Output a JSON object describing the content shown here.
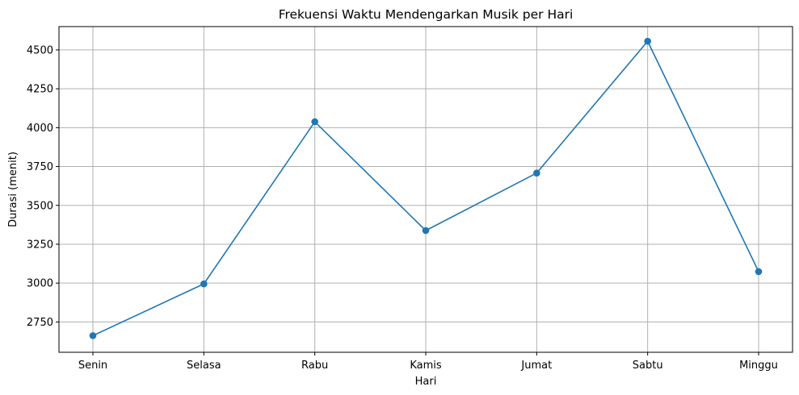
{
  "chart_data": {
    "type": "line",
    "title": "Frekuensi Waktu Mendengarkan Musik per Hari",
    "xlabel": "Hari",
    "ylabel": "Durasi (menit)",
    "categories": [
      "Senin",
      "Selasa",
      "Rabu",
      "Kamis",
      "Jumat",
      "Sabtu",
      "Minggu"
    ],
    "series": [
      {
        "values": [
          2662,
          2995,
          4038,
          3338,
          3708,
          4556,
          3074
        ],
        "color": "#1f77b4",
        "marker": "circle"
      }
    ],
    "yticks": [
      2750,
      3000,
      3250,
      3500,
      3750,
      4000,
      4250,
      4500
    ],
    "ytick_labels": [
      "2750",
      "3000",
      "3250",
      "3500",
      "3750",
      "4000",
      "4250",
      "4500"
    ],
    "ylim": [
      2555,
      4650
    ],
    "grid": true,
    "legend": "none"
  }
}
